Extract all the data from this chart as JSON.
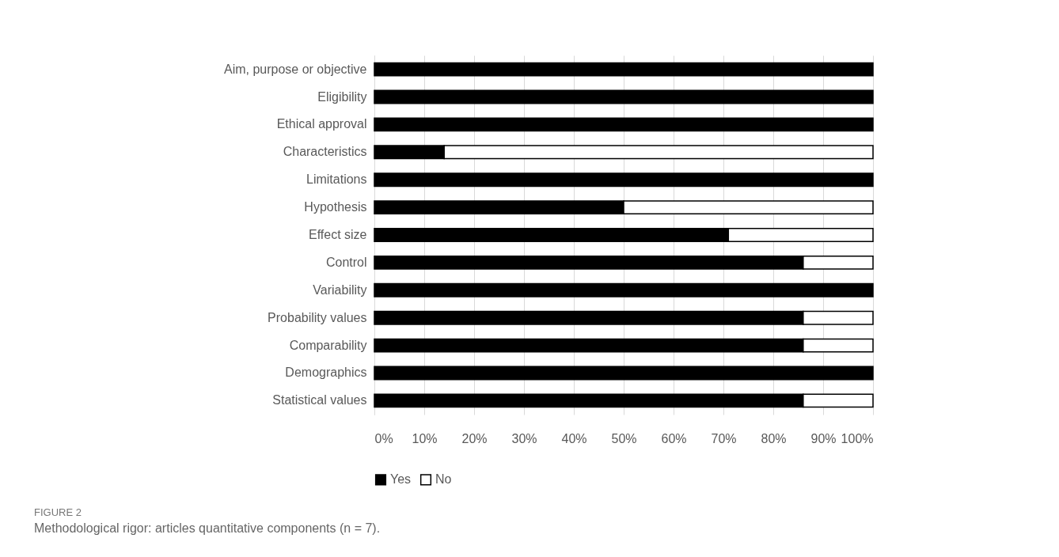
{
  "chart_data": {
    "type": "bar",
    "orientation": "horizontal",
    "stacked": true,
    "categories": [
      "Aim, purpose or objective",
      "Eligibility",
      "Ethical approval",
      "Characteristics",
      "Limitations",
      "Hypothesis",
      "Effect size",
      "Control",
      "Variability",
      "Probability values",
      "Comparability",
      "Demographics",
      "Statistical values"
    ],
    "series": [
      {
        "name": "Yes",
        "color": "#000000",
        "values": [
          100,
          100,
          100,
          14,
          100,
          50,
          71,
          86,
          100,
          86,
          86,
          100,
          86
        ]
      },
      {
        "name": "No",
        "color": "#ffffff",
        "values": [
          0,
          0,
          0,
          86,
          0,
          50,
          29,
          14,
          0,
          14,
          14,
          0,
          14
        ]
      }
    ],
    "xlim": [
      0,
      100
    ],
    "xticks": [
      {
        "value": 0,
        "label": "0%"
      },
      {
        "value": 10,
        "label": "10%"
      },
      {
        "value": 20,
        "label": "20%"
      },
      {
        "value": 30,
        "label": "30%"
      },
      {
        "value": 40,
        "label": "40%"
      },
      {
        "value": 50,
        "label": "50%"
      },
      {
        "value": 60,
        "label": "60%"
      },
      {
        "value": 70,
        "label": "70%"
      },
      {
        "value": 80,
        "label": "80%"
      },
      {
        "value": 90,
        "label": "90%"
      },
      {
        "value": 100,
        "label": "100%"
      }
    ],
    "grid": "x",
    "legend": "bottom",
    "annotations": [
      "FIGURE 2",
      "Methodological rigor: articles quantitative components (n = 7)."
    ]
  }
}
